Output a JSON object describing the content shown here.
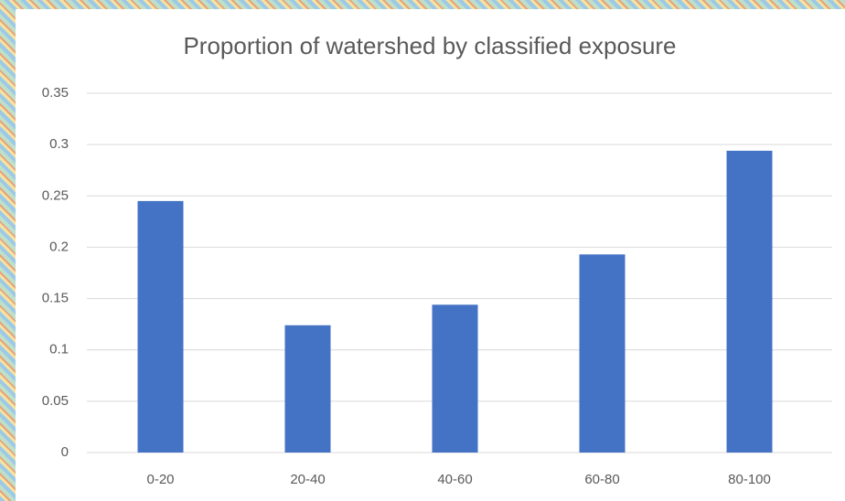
{
  "chart_data": {
    "type": "bar",
    "title": "Proportion of watershed by classified exposure",
    "categories": [
      "0-20",
      "20-40",
      "40-60",
      "60-80",
      "80-100"
    ],
    "values": [
      0.245,
      0.124,
      0.144,
      0.193,
      0.294
    ],
    "color": "#4472c4",
    "ylim": [
      0,
      0.35
    ],
    "yticks": [
      0,
      0.05,
      0.1,
      0.15,
      0.2,
      0.25,
      0.3,
      0.35
    ],
    "grid": true
  }
}
